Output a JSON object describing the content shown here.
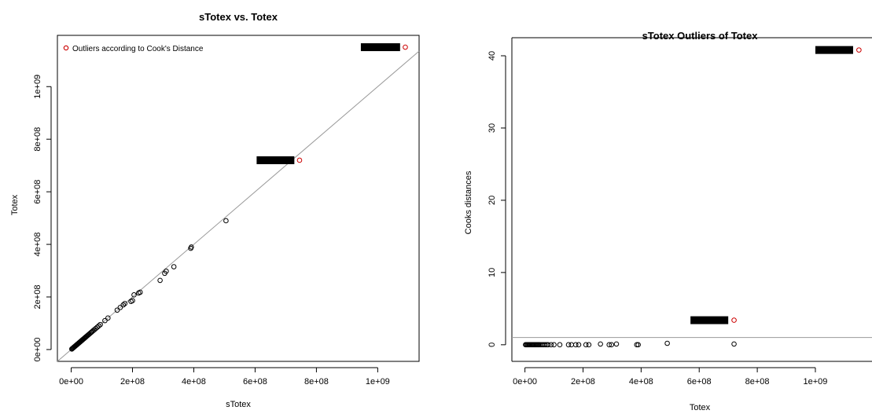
{
  "colors": {
    "normal": "#000000",
    "outlier": "#cc0000",
    "refline": "#999999",
    "redaction": "#000000"
  },
  "chart_data": [
    {
      "type": "scatter",
      "title": "sTotex vs. Totex",
      "xlabel": "sTotex",
      "ylabel": "Totex",
      "xlim": [
        -45000000,
        1135000000
      ],
      "ylim": [
        -45000000,
        1195000000
      ],
      "xticks": [
        0,
        200000000,
        400000000,
        600000000,
        800000000,
        1000000000
      ],
      "xtick_labels": [
        "0e+00",
        "2e+08",
        "4e+08",
        "6e+08",
        "8e+08",
        "1e+09"
      ],
      "yticks": [
        0,
        200000000,
        400000000,
        600000000,
        800000000,
        1000000000
      ],
      "ytick_labels": [
        "0e+00",
        "2e+08",
        "4e+08",
        "6e+08",
        "8e+08",
        "1e+09"
      ],
      "reference_line": "y = x",
      "legend": {
        "label": "Outliers according to Cook's Distance",
        "position": "top-left"
      },
      "series": [
        {
          "role": "normal",
          "points": [
            [
              2000000,
              2000000
            ],
            [
              4000000,
              4000000
            ],
            [
              6000000,
              6000000
            ],
            [
              8000000,
              8000000
            ],
            [
              10000000,
              10000000
            ],
            [
              12000000,
              12000000
            ],
            [
              14000000,
              14000000
            ],
            [
              16000000,
              16000000
            ],
            [
              18000000,
              18000000
            ],
            [
              20000000,
              20000000
            ],
            [
              22000000,
              22000000
            ],
            [
              24000000,
              24000000
            ],
            [
              26000000,
              26000000
            ],
            [
              28000000,
              28000000
            ],
            [
              30000000,
              30000000
            ],
            [
              32000000,
              32000000
            ],
            [
              34000000,
              34000000
            ],
            [
              36000000,
              36000000
            ],
            [
              38000000,
              38000000
            ],
            [
              40000000,
              40000000
            ],
            [
              42000000,
              42000000
            ],
            [
              44000000,
              44000000
            ],
            [
              46000000,
              46000000
            ],
            [
              48000000,
              48000000
            ],
            [
              50000000,
              50000000
            ],
            [
              53000000,
              53000000
            ],
            [
              56000000,
              56000000
            ],
            [
              59000000,
              59000000
            ],
            [
              62000000,
              62000000
            ],
            [
              65000000,
              65000000
            ],
            [
              68000000,
              68000000
            ],
            [
              72000000,
              72000000
            ],
            [
              76000000,
              76000000
            ],
            [
              80000000,
              80000000
            ],
            [
              85000000,
              85000000
            ],
            [
              90000000,
              90000000
            ],
            [
              95000000,
              95000000
            ],
            [
              110000000,
              110000000
            ],
            [
              120000000,
              120000000
            ],
            [
              150000000,
              150000000
            ],
            [
              160000000,
              160000000
            ],
            [
              170000000,
              170000000
            ],
            [
              175000000,
              175000000
            ],
            [
              195000000,
              183000000
            ],
            [
              200000000,
              186000000
            ],
            [
              205000000,
              208000000
            ],
            [
              220000000,
              215000000
            ],
            [
              225000000,
              218000000
            ],
            [
              290000000,
              263000000
            ],
            [
              305000000,
              290000000
            ],
            [
              310000000,
              298000000
            ],
            [
              335000000,
              315000000
            ],
            [
              390000000,
              385000000
            ],
            [
              392000000,
              390000000
            ],
            [
              505000000,
              490000000
            ]
          ]
        },
        {
          "role": "outlier",
          "points": [
            [
              745000000,
              720000000
            ],
            [
              1090000000,
              1150000000
            ]
          ]
        }
      ],
      "redaction_label": "",
      "redactions": [
        {
          "x0": 605000000,
          "x1": 728000000,
          "y": 720000000
        },
        {
          "x0": 945000000,
          "x1": 1073000000,
          "y": 1150000000
        }
      ]
    },
    {
      "type": "scatter",
      "title": "sTotex Outliers of Totex",
      "xlabel": "Totex",
      "ylabel": "Cooks distances",
      "xlim": [
        -45000000,
        1195000000
      ],
      "ylim": [
        -2.3,
        42.5
      ],
      "xticks": [
        0,
        200000000,
        400000000,
        600000000,
        800000000,
        1000000000
      ],
      "xtick_labels": [
        "0e+00",
        "2e+08",
        "4e+08",
        "6e+08",
        "8e+08",
        "1e+09"
      ],
      "yticks": [
        0,
        10,
        20,
        30,
        40
      ],
      "ytick_labels": [
        "0",
        "10",
        "20",
        "30",
        "40"
      ],
      "threshold_line": 1,
      "series": [
        {
          "role": "normal",
          "points": [
            [
              2000000,
              0
            ],
            [
              5000000,
              0
            ],
            [
              8000000,
              0
            ],
            [
              11000000,
              0
            ],
            [
              14000000,
              0
            ],
            [
              17000000,
              0
            ],
            [
              20000000,
              0
            ],
            [
              23000000,
              0
            ],
            [
              26000000,
              0
            ],
            [
              29000000,
              0
            ],
            [
              32000000,
              0
            ],
            [
              35000000,
              0
            ],
            [
              38000000,
              0
            ],
            [
              41000000,
              0
            ],
            [
              44000000,
              0
            ],
            [
              47000000,
              0
            ],
            [
              50000000,
              0
            ],
            [
              55000000,
              0
            ],
            [
              60000000,
              0
            ],
            [
              65000000,
              0
            ],
            [
              70000000,
              0
            ],
            [
              75000000,
              0
            ],
            [
              80000000,
              0
            ],
            [
              90000000,
              0
            ],
            [
              100000000,
              0
            ],
            [
              120000000,
              0
            ],
            [
              150000000,
              0
            ],
            [
              160000000,
              0
            ],
            [
              175000000,
              0
            ],
            [
              185000000,
              0
            ],
            [
              210000000,
              0
            ],
            [
              220000000,
              0
            ],
            [
              260000000,
              0.1
            ],
            [
              290000000,
              0
            ],
            [
              298000000,
              0
            ],
            [
              315000000,
              0.1
            ],
            [
              385000000,
              0
            ],
            [
              390000000,
              0
            ],
            [
              490000000,
              0.2
            ],
            [
              720000000,
              0.1
            ]
          ]
        },
        {
          "role": "outlier",
          "points": [
            [
              720000000,
              3.4
            ],
            [
              1150000000,
              40.8
            ]
          ]
        }
      ],
      "redaction_label": "",
      "redactions": [
        {
          "x0": 570000000,
          "x1": 700000000,
          "y": 3.4
        },
        {
          "x0": 1000000000,
          "x1": 1130000000,
          "y": 40.8
        }
      ]
    }
  ]
}
